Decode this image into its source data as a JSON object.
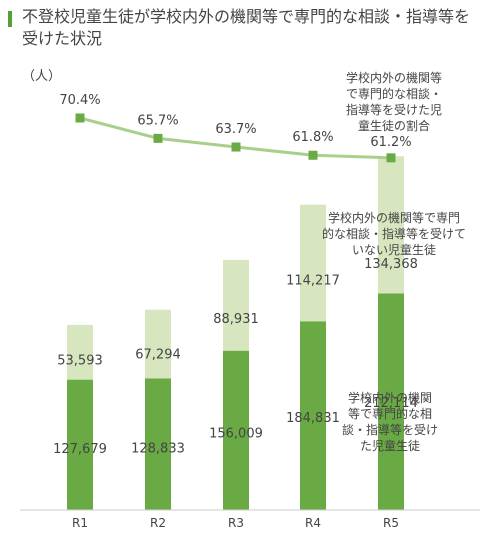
{
  "title": "不登校児童生徒が学校内外の機関等で専門的な相談・指導等を受けた状況",
  "unit": "（人）",
  "colors": {
    "received": "#6aaa44",
    "not_received": "#d8e6c0",
    "rate_line": "#a8d08c",
    "rate_marker": "#6aaa44",
    "axis": "#cccccc",
    "text": "#444444"
  },
  "chart_data": {
    "type": "bar",
    "stacked": true,
    "categories": [
      "R1",
      "R2",
      "R3",
      "R4",
      "R5"
    ],
    "ylabel": "（人）",
    "ylim": [
      0,
      350000
    ],
    "series": [
      {
        "name": "学校内外の機関等で専門的な相談・指導等を受けた児童生徒",
        "values": [
          127679,
          128833,
          156009,
          184831,
          212114
        ]
      },
      {
        "name": "学校内外の機関等で専門的な相談・指導等を受けていない児童生徒",
        "values": [
          53593,
          67294,
          88931,
          114217,
          134368
        ]
      }
    ],
    "rate": {
      "name": "学校内外の機関等で専門的な相談・指導等を受けた児童生徒の割合",
      "unit": "%",
      "values": [
        70.4,
        65.7,
        63.7,
        61.8,
        61.2
      ]
    },
    "value_labels": {
      "received": [
        "127,679",
        "128,833",
        "156,009",
        "184,831",
        "212,114"
      ],
      "not_received": [
        "53,593",
        "67,294",
        "88,931",
        "114,217",
        "134,368"
      ],
      "rate": [
        "70.4%",
        "65.7%",
        "63.7%",
        "61.8%",
        "61.2%"
      ]
    },
    "annotations": {
      "rate": [
        "学校内外の機関等",
        "で専門的な相談・",
        "指導等を受けた児",
        "童生徒の割合"
      ],
      "not_received": [
        "学校内外の機関等で専門",
        "的な相談・指導等を受けて",
        "いない児童生徒"
      ],
      "received": [
        "学校内外の機関",
        "等で専門的な相",
        "談・指導等を受け",
        "た児童生徒"
      ]
    }
  }
}
